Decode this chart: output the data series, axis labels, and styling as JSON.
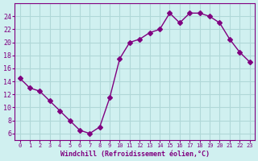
{
  "x": [
    0,
    1,
    2,
    3,
    4,
    5,
    6,
    7,
    8,
    9,
    10,
    11,
    12,
    13,
    14,
    15,
    16,
    17,
    18,
    19,
    20,
    21,
    22,
    23
  ],
  "y": [
    14.5,
    13.0,
    12.5,
    11.0,
    9.5,
    8.0,
    6.5,
    6.0,
    7.0,
    11.5,
    17.5,
    20.0,
    20.5,
    21.5,
    22.0,
    24.5,
    23.0,
    24.5,
    24.5,
    24.0,
    23.0,
    20.5,
    18.5,
    17.0
  ],
  "xlim": [
    -0.5,
    23.5
  ],
  "ylim": [
    5,
    26
  ],
  "yticks": [
    6,
    8,
    10,
    12,
    14,
    16,
    18,
    20,
    22,
    24
  ],
  "xticks": [
    0,
    1,
    2,
    3,
    4,
    5,
    6,
    7,
    8,
    9,
    10,
    11,
    12,
    13,
    14,
    15,
    16,
    17,
    18,
    19,
    20,
    21,
    22,
    23
  ],
  "xlabel": "Windchill (Refroidissement éolien,°C)",
  "line_color": "#800080",
  "marker": "D",
  "marker_size": 3,
  "background_color": "#d0f0f0",
  "grid_color": "#b0d8d8",
  "tick_color": "#800080",
  "label_color": "#800080"
}
